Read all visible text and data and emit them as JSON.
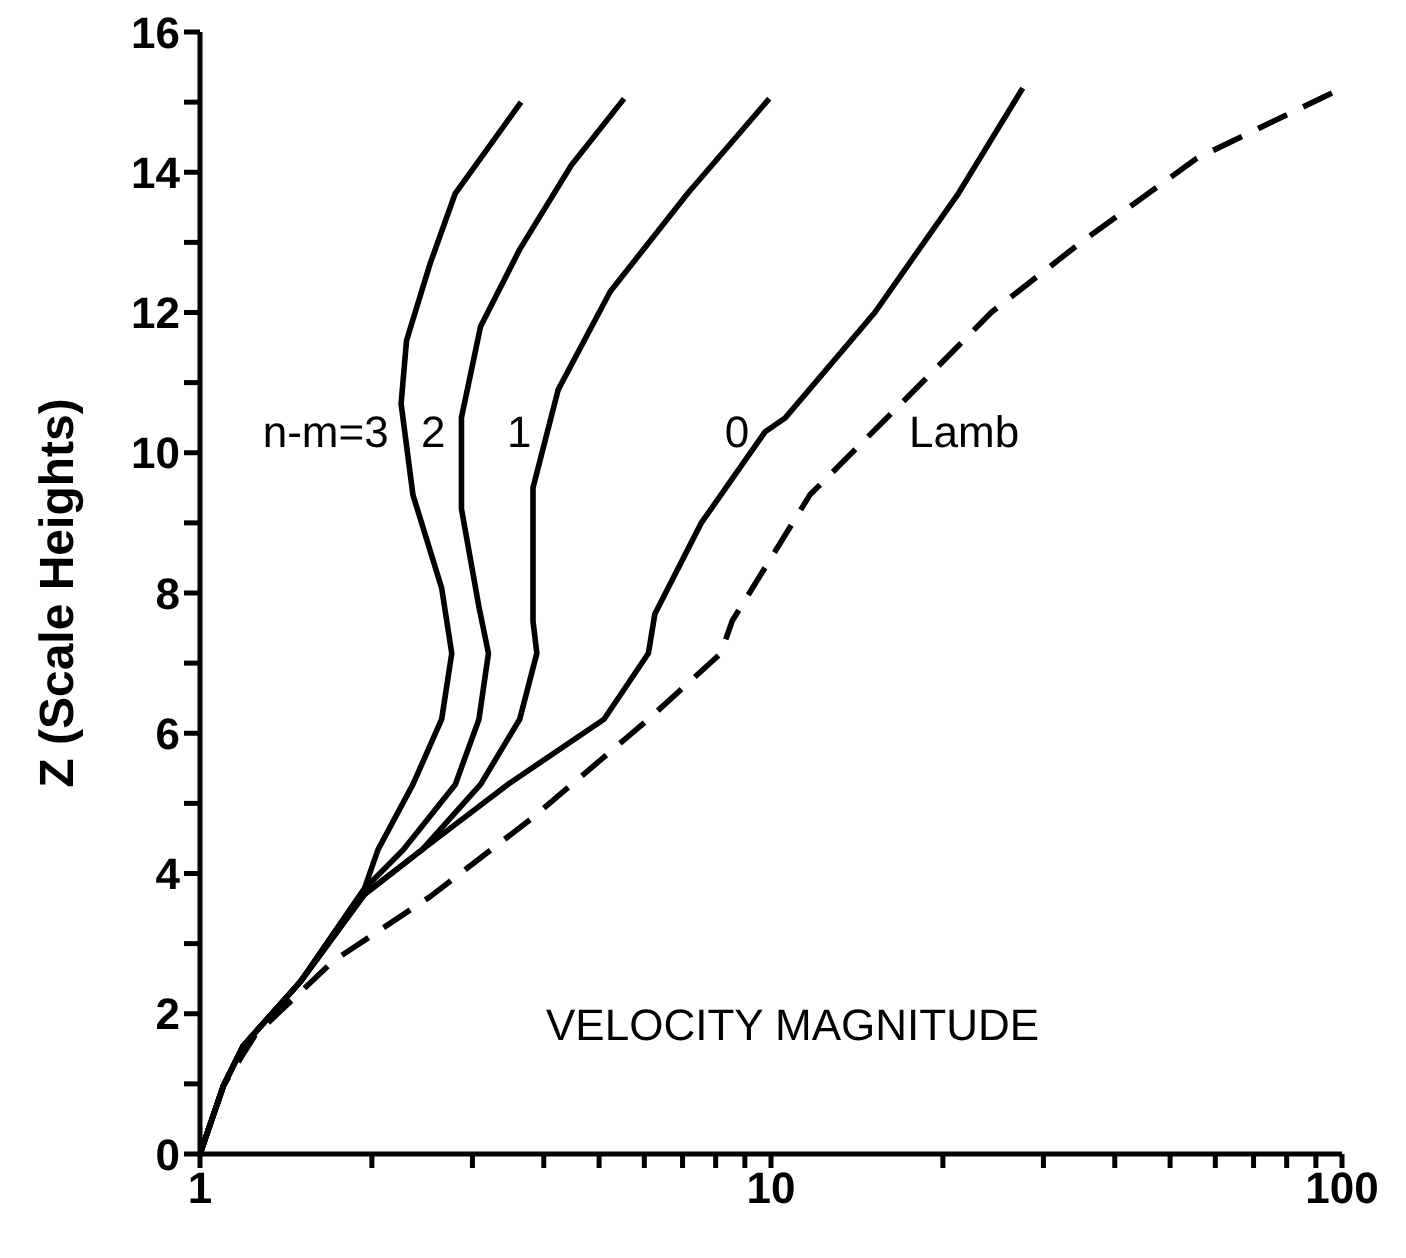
{
  "chart_data": {
    "type": "line",
    "ylabel": "Z (Scale Heights)",
    "log": "x",
    "xlim": [
      1,
      100
    ],
    "ylim": [
      0,
      16
    ],
    "xticks": [
      1,
      {
        "value": 2,
        "label": null
      },
      {
        "value": 3,
        "label": null
      },
      {
        "value": 4,
        "label": null
      },
      {
        "value": 5,
        "label": null
      },
      {
        "value": 6,
        "label": null
      },
      {
        "value": 7,
        "label": null
      },
      {
        "value": 8,
        "label": null
      },
      {
        "value": 9,
        "label": null
      },
      10,
      {
        "value": 20,
        "label": null
      },
      {
        "value": 30,
        "label": null
      },
      {
        "value": 40,
        "label": null
      },
      {
        "value": 50,
        "label": null
      },
      {
        "value": 60,
        "label": null
      },
      {
        "value": 70,
        "label": null
      },
      {
        "value": 80,
        "label": null
      },
      {
        "value": 90,
        "label": null
      },
      100
    ],
    "yticks": [
      0,
      {
        "value": 1,
        "label": null
      },
      2,
      {
        "value": 3,
        "label": null
      },
      4,
      {
        "value": 5,
        "label": null
      },
      6,
      {
        "value": 7,
        "label": null
      },
      8,
      {
        "value": 9,
        "label": null
      },
      10,
      {
        "value": 11,
        "label": null
      },
      12,
      {
        "value": 13,
        "label": null
      },
      14,
      {
        "value": 15,
        "label": null
      },
      16
    ],
    "grid": false,
    "legend": false,
    "marker": "none",
    "series": [
      {
        "name": "n-m=3",
        "color": "#000000",
        "line_style": "solid",
        "x": [
          1,
          1.1,
          1.19,
          1.5,
          1.94,
          2.05,
          2.36,
          2.65,
          2.76,
          2.65,
          2.36,
          2.25,
          2.3,
          2.53,
          2.8,
          3.65
        ],
        "values": [
          0,
          0.98,
          1.54,
          2.46,
          3.78,
          4.34,
          5.27,
          6.2,
          7.14,
          8.07,
          9.4,
          10.7,
          11.6,
          12.7,
          13.7,
          15
        ]
      },
      {
        "name": "2",
        "color": "#000000",
        "line_style": "solid",
        "x": [
          1,
          1.1,
          1.19,
          1.5,
          1.94,
          2.27,
          2.8,
          3.08,
          3.2,
          3.08,
          2.87,
          2.87,
          3.1,
          3.63,
          4.47,
          5.53
        ],
        "values": [
          0,
          0.98,
          1.54,
          2.46,
          3.78,
          4.34,
          5.27,
          6.2,
          7.14,
          7.8,
          9.2,
          10.5,
          11.8,
          12.9,
          14.1,
          15.05
        ]
      },
      {
        "name": "1",
        "color": "#000000",
        "line_style": "solid",
        "x": [
          1,
          1.1,
          1.19,
          1.5,
          1.94,
          2.45,
          3.1,
          3.63,
          3.89,
          3.83,
          3.83,
          4.24,
          5.23,
          7.15,
          9.93
        ],
        "values": [
          0,
          0.98,
          1.54,
          2.46,
          3.7,
          4.34,
          5.27,
          6.2,
          7.14,
          7.6,
          9.5,
          10.9,
          12.3,
          13.7,
          15.05
        ]
      },
      {
        "name": "0",
        "color": "#000000",
        "line_style": "solid",
        "x": [
          1,
          1.1,
          1.19,
          1.5,
          1.94,
          2.45,
          3.46,
          5.1,
          6.1,
          6.26,
          7.55,
          9.77,
          10.6,
          15.2,
          21.3,
          27.6
        ],
        "values": [
          0,
          0.98,
          1.54,
          2.46,
          3.7,
          4.34,
          5.27,
          6.2,
          7.14,
          7.7,
          9,
          10.3,
          10.5,
          12,
          13.7,
          15.2
        ]
      },
      {
        "name": "Lamb",
        "color": "#000000",
        "line_style": "dashed",
        "x": [
          1,
          1.1,
          1.25,
          1.71,
          2.53,
          3.83,
          6.1,
          8.17,
          8.55,
          11.7,
          16.9,
          24.3,
          34.9,
          55.7,
          100
        ],
        "values": [
          0,
          0.98,
          1.7,
          2.75,
          3.67,
          4.8,
          6.2,
          7.14,
          7.6,
          9.4,
          10.7,
          12,
          13,
          14.2,
          15.2
        ]
      }
    ],
    "annotations": [
      "VELOCITY MAGNITUDE"
    ]
  }
}
